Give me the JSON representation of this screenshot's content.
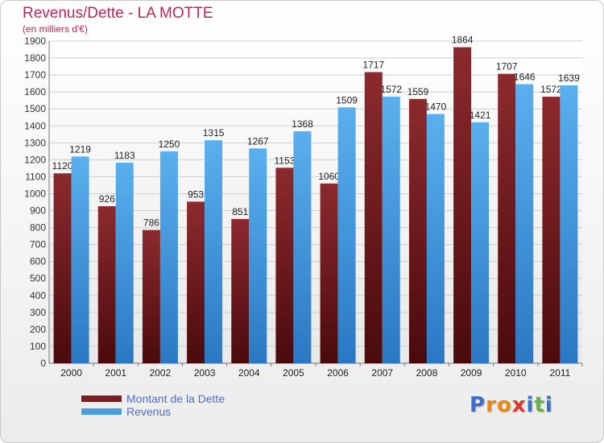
{
  "chart_data": {
    "type": "bar",
    "title": "Revenus/Dette - LA MOTTE",
    "subtitle": "(en milliers d'€)",
    "categories": [
      "2000",
      "2001",
      "2002",
      "2003",
      "2004",
      "2005",
      "2006",
      "2007",
      "2008",
      "2009",
      "2010",
      "2011"
    ],
    "series": [
      {
        "name": "Montant de la Dette",
        "color": "#7a1e22",
        "values": [
          1120,
          926,
          786,
          953,
          851,
          1153,
          1060,
          1717,
          1559,
          1864,
          1707,
          1572
        ],
        "labels": [
          "1120",
          "926",
          "786",
          "953",
          "851",
          "1153",
          "1060",
          "1717",
          "1559",
          "1864",
          "1707",
          "1572"
        ]
      },
      {
        "name": "Revenus",
        "color": "#4a9fe0",
        "values": [
          1219,
          1183,
          1250,
          1315,
          1267,
          1368,
          1509,
          1572,
          1470,
          1421,
          1646,
          1639
        ],
        "labels": [
          "1219",
          "1183",
          "1250",
          "1315",
          "1267",
          "1368",
          "1509",
          "1572",
          "1470",
          "1421",
          "1646",
          "1639"
        ]
      }
    ],
    "ylim": [
      0,
      1900
    ],
    "yticks": [
      0,
      100,
      200,
      300,
      400,
      500,
      600,
      700,
      800,
      900,
      1000,
      1100,
      1200,
      1300,
      1400,
      1500,
      1600,
      1700,
      1800,
      1900
    ],
    "grid": true,
    "legend_position": "bottom-left"
  },
  "logo": {
    "letters": [
      "P",
      "r",
      "o",
      "x",
      "i",
      "t",
      "i"
    ],
    "colors": [
      "#3a6fc8",
      "#e88a1a",
      "#e88a1a",
      "#d93a2a",
      "#3a6fc8",
      "#6ab04c",
      "#3a6fc8"
    ]
  }
}
